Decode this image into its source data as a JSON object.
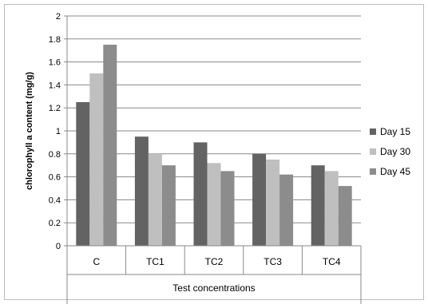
{
  "chart_data": {
    "type": "bar",
    "categories": [
      "C",
      "TC1",
      "TC2",
      "TC3",
      "TC4"
    ],
    "series": [
      {
        "name": "Day 15",
        "color": "#636363",
        "values": [
          1.25,
          0.95,
          0.9,
          0.8,
          0.7
        ]
      },
      {
        "name": "Day 30",
        "color": "#bfbfbf",
        "values": [
          1.5,
          0.8,
          0.72,
          0.75,
          0.65
        ]
      },
      {
        "name": "Day 45",
        "color": "#8c8c8c",
        "values": [
          1.75,
          0.7,
          0.65,
          0.62,
          0.52
        ]
      }
    ],
    "xlabel": "Test concentrations",
    "ylabel": "chlorophyll a content (mg/g)",
    "ylim": [
      0,
      2
    ],
    "yticks": [
      "0",
      "0.2",
      "0.4",
      "0.6",
      "0.8",
      "1",
      "1.2",
      "1.4",
      "1.6",
      "1.8",
      "2"
    ],
    "grid": true,
    "legend_position": "right"
  }
}
